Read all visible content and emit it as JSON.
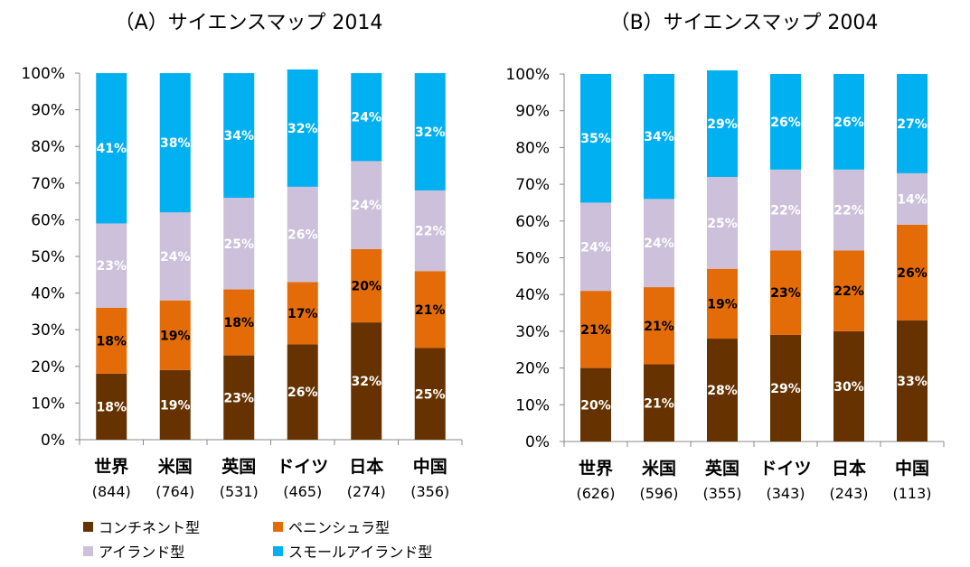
{
  "colors": {
    "continent": "#663300",
    "peninsula": "#E36C09",
    "island": "#CCC0DA",
    "small_island": "#00B0F0"
  },
  "legend": {
    "items": [
      {
        "label": "コンチネント型",
        "color": "#663300"
      },
      {
        "label": "ペニンシュラ型",
        "color": "#E36C09"
      },
      {
        "label": "アイランド型",
        "color": "#CCC0DA"
      },
      {
        "label": "スモールアイランド型",
        "color": "#00B0F0"
      }
    ]
  },
  "chart_data": [
    {
      "type": "bar",
      "stacked": true,
      "title": "（A）サイエンスマップ 2014",
      "categories": [
        "世界",
        "米国",
        "英国",
        "ドイツ",
        "日本",
        "中国"
      ],
      "category_counts": [
        "(844)",
        "(764)",
        "(531)",
        "(465)",
        "(274)",
        "(356)"
      ],
      "y_ticks": [
        "0%",
        "10%",
        "20%",
        "30%",
        "40%",
        "50%",
        "60%",
        "70%",
        "80%",
        "90%",
        "100%"
      ],
      "ylim": [
        0,
        100
      ],
      "series": [
        {
          "name": "コンチネント型",
          "values": [
            18,
            19,
            23,
            26,
            32,
            25
          ],
          "labels": [
            "18%",
            "19%",
            "23%",
            "26%",
            "32%",
            "25%"
          ]
        },
        {
          "name": "ペニンシュラ型",
          "values": [
            18,
            19,
            18,
            17,
            20,
            21
          ],
          "labels": [
            "18%",
            "19%",
            "18%",
            "17%",
            "20%",
            "21%"
          ]
        },
        {
          "name": "アイランド型",
          "values": [
            23,
            24,
            25,
            26,
            24,
            22
          ],
          "labels": [
            "23%",
            "24%",
            "25%",
            "26%",
            "24%",
            "22%"
          ]
        },
        {
          "name": "スモールアイランド型",
          "values": [
            41,
            38,
            34,
            32,
            24,
            32
          ],
          "labels": [
            "41%",
            "38%",
            "34%",
            "32%",
            "24%",
            "32%"
          ]
        }
      ]
    },
    {
      "type": "bar",
      "stacked": true,
      "title": "（B）サイエンスマップ 2004",
      "categories": [
        "世界",
        "米国",
        "英国",
        "ドイツ",
        "日本",
        "中国"
      ],
      "category_counts": [
        "(626)",
        "(596)",
        "(355)",
        "(343)",
        "(243)",
        "(113)"
      ],
      "y_ticks": [
        "0%",
        "10%",
        "20%",
        "30%",
        "40%",
        "50%",
        "60%",
        "70%",
        "80%",
        "90%",
        "100%"
      ],
      "ylim": [
        0,
        100
      ],
      "series": [
        {
          "name": "コンチネント型",
          "values": [
            20,
            21,
            28,
            29,
            30,
            33
          ],
          "labels": [
            "20%",
            "21%",
            "28%",
            "29%",
            "30%",
            "33%"
          ]
        },
        {
          "name": "ペニンシュラ型",
          "values": [
            21,
            21,
            19,
            23,
            22,
            26
          ],
          "labels": [
            "21%",
            "21%",
            "19%",
            "23%",
            "22%",
            "26%"
          ]
        },
        {
          "name": "アイランド型",
          "values": [
            24,
            24,
            25,
            22,
            22,
            14
          ],
          "labels": [
            "24%",
            "24%",
            "25%",
            "22%",
            "22%",
            "14%"
          ]
        },
        {
          "name": "スモールアイランド型",
          "values": [
            35,
            34,
            29,
            26,
            26,
            27
          ],
          "labels": [
            "35%",
            "34%",
            "29%",
            "26%",
            "26%",
            "27%"
          ]
        }
      ]
    }
  ]
}
